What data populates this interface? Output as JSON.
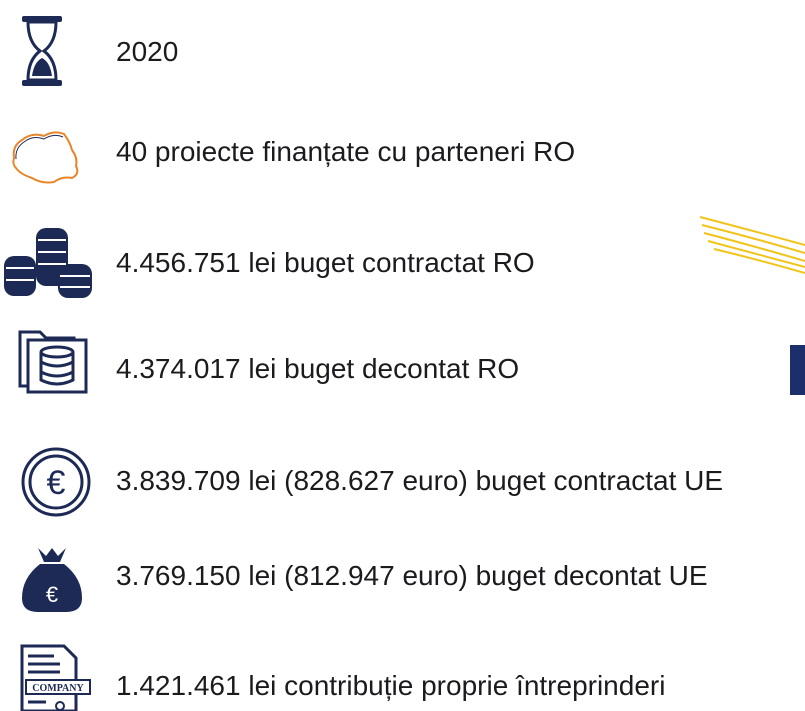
{
  "items": [
    {
      "text": "2020"
    },
    {
      "text": "40 proiecte finanțate cu parteneri RO"
    },
    {
      "text": "4.456.751 lei buget contractat RO"
    },
    {
      "text": "4.374.017 lei buget decontat RO"
    },
    {
      "text": "3.839.709 lei (828.627 euro) buget contractat UE"
    },
    {
      "text": "3.769.150 lei (812.947 euro) buget decontat UE"
    },
    {
      "text": "1.421.461 lei contribuție proprie întreprinderi"
    }
  ]
}
